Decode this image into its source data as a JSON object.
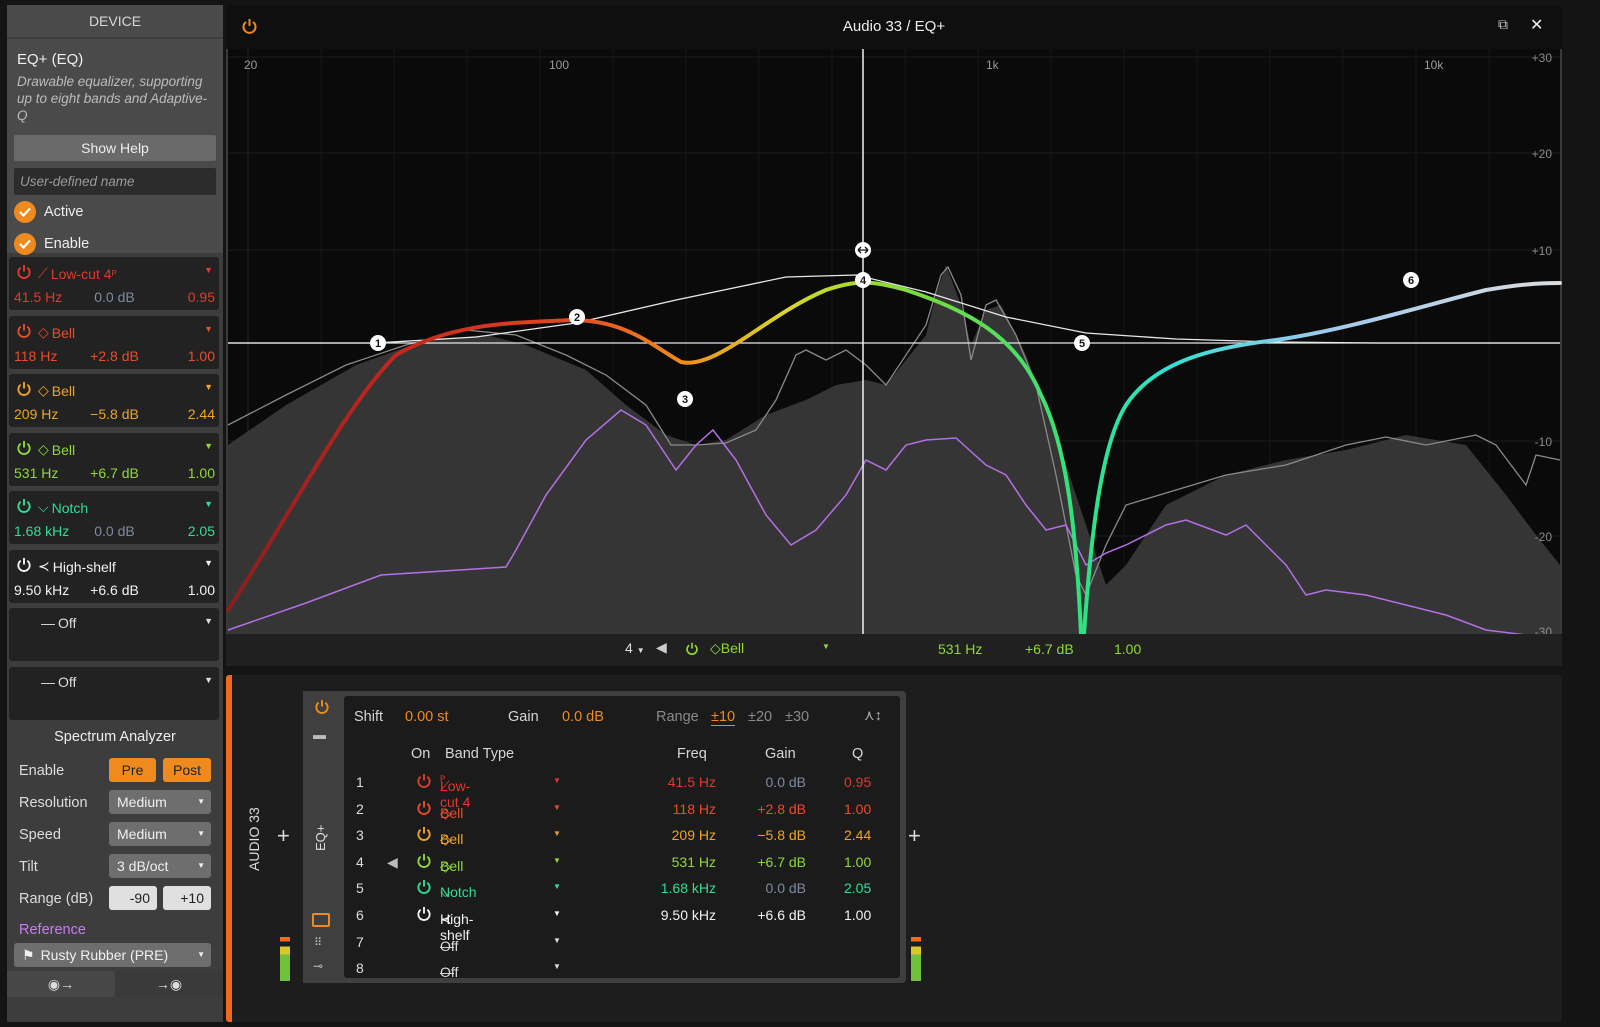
{
  "device_panel": {
    "header": "DEVICE",
    "title": "EQ+ (EQ)",
    "description": "Drawable equalizer, supporting up to eight bands and Adaptive-Q",
    "help_button": "Show Help",
    "name_placeholder": "User-defined name",
    "active_label": "Active",
    "enable_label": "Enable"
  },
  "bands": [
    {
      "num": "1",
      "type": "Low-cut 4",
      "type_sup": "P",
      "icon": "lowcut-icon",
      "freq": "41.5 Hz",
      "gain": "0.0 dB",
      "q": "0.95",
      "color": "#e03a2c"
    },
    {
      "num": "2",
      "type": "Bell",
      "icon": "bell-icon",
      "freq": "118 Hz",
      "gain": "+2.8 dB",
      "q": "1.00",
      "color": "#ea4b2a"
    },
    {
      "num": "3",
      "type": "Bell",
      "icon": "bell-icon",
      "freq": "209 Hz",
      "gain": "−5.8 dB",
      "q": "2.44",
      "color": "#f0a326"
    },
    {
      "num": "4",
      "type": "Bell",
      "icon": "bell-icon",
      "freq": "531 Hz",
      "gain": "+6.7 dB",
      "q": "1.00",
      "color": "#8fd83a"
    },
    {
      "num": "5",
      "type": "Notch",
      "icon": "notch-icon",
      "freq": "1.68 kHz",
      "gain": "0.0 dB",
      "q": "2.05",
      "color": "#31dd94"
    },
    {
      "num": "6",
      "type": "High-shelf",
      "icon": "highshelf-icon",
      "freq": "9.50 kHz",
      "gain": "+6.6 dB",
      "q": "1.00",
      "color": "#f2f2f2"
    },
    {
      "num": "7",
      "type": "Off",
      "icon": "off-icon"
    },
    {
      "num": "8",
      "type": "Off",
      "icon": "off-icon"
    }
  ],
  "spectrum": {
    "title": "Spectrum Analyzer",
    "enable_label": "Enable",
    "pre": "Pre",
    "post": "Post",
    "resolution_label": "Resolution",
    "resolution": "Medium",
    "speed_label": "Speed",
    "speed": "Medium",
    "tilt_label": "Tilt",
    "tilt": "3 dB/oct",
    "range_label": "Range (dB)",
    "range_min": "-90",
    "range_max": "+10",
    "reference_label": "Reference",
    "reference": "Rusty Rubber (PRE)"
  },
  "footer": {
    "left": "◉→",
    "right": "→◉"
  },
  "eq_window": {
    "title": "Audio 33 / EQ+",
    "freq_labels": [
      "20",
      "100",
      "1k",
      "10k"
    ],
    "db_labels": [
      "+30",
      "+20",
      "+10",
      "-10",
      "-20",
      "-30"
    ]
  },
  "eq_bottom": {
    "band_num": "4",
    "band_type": "Bell",
    "freq": "531 Hz",
    "gain": "+6.7 dB",
    "q": "1.00"
  },
  "chain": {
    "track": "AUDIO 33",
    "device_tab": "EQ+",
    "shift_label": "Shift",
    "shift_value": "0.00 st",
    "gain_label": "Gain",
    "gain_value": "0.0 dB",
    "range_label": "Range",
    "range_options": [
      "±10",
      "±20",
      "±30"
    ],
    "col_on": "On",
    "col_type": "Band Type",
    "col_freq": "Freq",
    "col_gain": "Gain",
    "col_q": "Q"
  },
  "colors": {
    "accent": "#ef8a1e",
    "background": "#141414"
  }
}
